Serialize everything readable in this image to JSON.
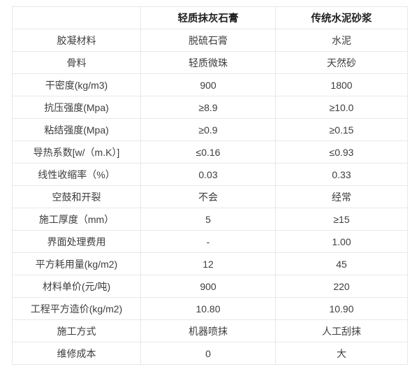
{
  "table": {
    "columns": [
      "",
      "轻质抹灰石膏",
      "传统水泥砂浆"
    ],
    "rows": [
      [
        "胶凝材料",
        "脱硫石膏",
        "水泥"
      ],
      [
        "骨料",
        "轻质微珠",
        "天然砂"
      ],
      [
        "干密度(kg/m3)",
        "900",
        "1800"
      ],
      [
        "抗压强度(Mpa)",
        "≥8.9",
        "≥10.0"
      ],
      [
        "粘结强度(Mpa)",
        "≥0.9",
        "≥0.15"
      ],
      [
        "导热系数[w/（m.K）]",
        "≤0.16",
        "≤0.93"
      ],
      [
        "线性收缩率（%）",
        "0.03",
        "0.33"
      ],
      [
        "空鼓和开裂",
        "不会",
        "经常"
      ],
      [
        "施工厚度（mm）",
        "5",
        "≥15"
      ],
      [
        "界面处理费用",
        "-",
        "1.00"
      ],
      [
        "平方耗用量(kg/m2)",
        "12",
        "45"
      ],
      [
        "材料单价(元/吨)",
        "900",
        "220"
      ],
      [
        "工程平方造价(kg/m2)",
        "10.80",
        "10.90"
      ],
      [
        "施工方式",
        "机器喷抹",
        "人工刮抹"
      ],
      [
        "维修成本",
        "0",
        "大"
      ]
    ]
  },
  "colors": {
    "border": "#e8e8e8",
    "header_text": "#1f1f1f",
    "body_text": "#3d3d3d",
    "background": "#ffffff"
  }
}
